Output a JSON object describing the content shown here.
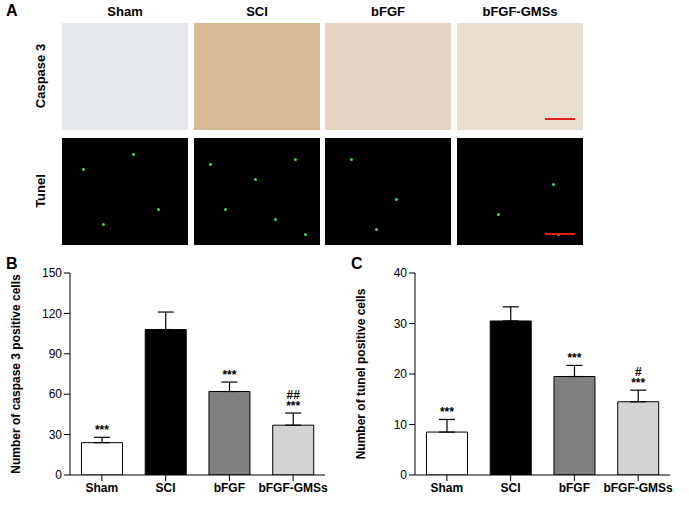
{
  "panel_A": {
    "label": "A",
    "columns": [
      "Sham",
      "SCI",
      "bFGF",
      "bFGF-GMSs"
    ],
    "rows": [
      "Caspase 3",
      "Tunel"
    ]
  },
  "chart_data": [
    {
      "panel": "B",
      "type": "bar",
      "y_label": "Number of caspase 3 positive cells",
      "categories": [
        "Sham",
        "SCI",
        "bFGF",
        "bFGF-GMSs"
      ],
      "values": [
        24,
        108,
        62,
        37
      ],
      "errors": [
        4,
        13,
        7,
        9
      ],
      "colors": [
        "#ffffff",
        "#000000",
        "#808080",
        "#d3d3d3"
      ],
      "ylim": [
        0,
        150
      ],
      "yticks": [
        0,
        30,
        60,
        90,
        120,
        150
      ],
      "significance": [
        [
          "***"
        ],
        [],
        [
          "***"
        ],
        [
          "##",
          "***"
        ]
      ]
    },
    {
      "panel": "C",
      "type": "bar",
      "y_label": "Number of tunel positive cells",
      "categories": [
        "Sham",
        "SCI",
        "bFGF",
        "bFGF-GMSs"
      ],
      "values": [
        8.5,
        30.5,
        19.5,
        14.5
      ],
      "errors": [
        2.5,
        2.8,
        2.2,
        2.3
      ],
      "colors": [
        "#ffffff",
        "#000000",
        "#808080",
        "#d3d3d3"
      ],
      "ylim": [
        0,
        40
      ],
      "yticks": [
        0,
        10,
        20,
        30,
        40
      ],
      "significance": [
        [
          "***"
        ],
        [],
        [
          "***"
        ],
        [
          "#",
          "***"
        ]
      ]
    }
  ]
}
